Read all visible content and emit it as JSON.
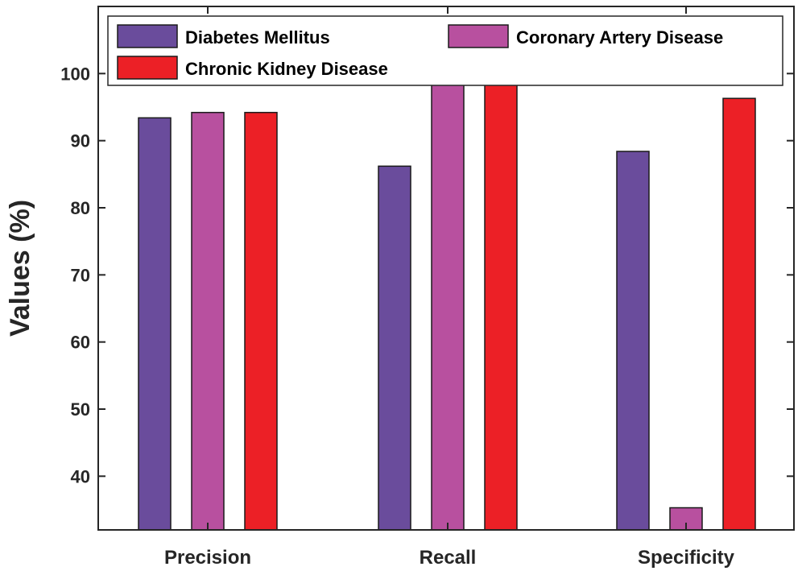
{
  "chart_data": {
    "type": "bar",
    "title": "",
    "xlabel": "",
    "ylabel": "Values (%)",
    "categories": [
      "Precision",
      "Recall",
      "Specificity"
    ],
    "series": [
      {
        "name": "Diabetes Mellitus",
        "color": "#6a4c9c",
        "values": [
          93.4,
          86.2,
          88.4
        ]
      },
      {
        "name": "Coronary Artery Disease",
        "color": "#b8509f",
        "values": [
          94.2,
          99.0,
          35.3
        ]
      },
      {
        "name": "Chronic Kidney Disease",
        "color": "#ec2026",
        "values": [
          94.2,
          98.7,
          96.3
        ]
      }
    ],
    "ylim": [
      32,
      110
    ],
    "yticks": [
      40,
      50,
      60,
      70,
      80,
      90,
      100
    ],
    "grid": false,
    "legend_position": "top"
  }
}
